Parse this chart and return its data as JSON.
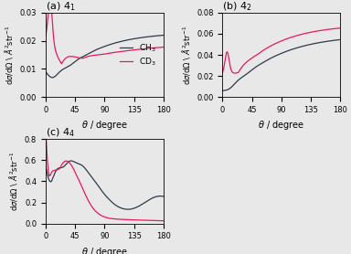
{
  "ch3_color": "#2d3a4a",
  "cd3_color": "#e8195a",
  "xticks": [
    0,
    45,
    90,
    135,
    180
  ],
  "panel_a_ylim": [
    0.0,
    0.03
  ],
  "panel_a_yticks": [
    0.0,
    0.01,
    0.02,
    0.03
  ],
  "panel_b_ylim": [
    0.0,
    0.08
  ],
  "panel_b_yticks": [
    0.0,
    0.02,
    0.04,
    0.06,
    0.08
  ],
  "panel_c_ylim": [
    0.0,
    0.8
  ],
  "panel_c_yticks": [
    0.0,
    0.2,
    0.4,
    0.6,
    0.8
  ],
  "legend_labels": [
    "CH$_3$",
    "CD$_3$"
  ],
  "background_color": "#e8e8e8"
}
